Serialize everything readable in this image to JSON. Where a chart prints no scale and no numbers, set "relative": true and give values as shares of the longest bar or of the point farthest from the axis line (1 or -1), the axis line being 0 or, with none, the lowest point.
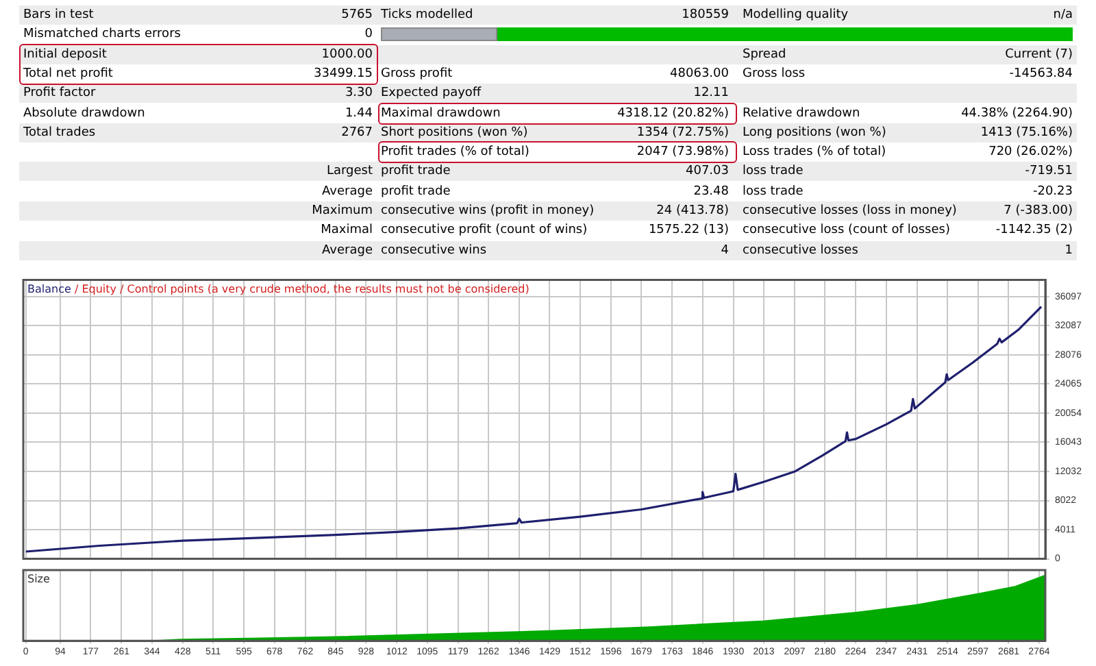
{
  "chart_data": [
    {
      "type": "other",
      "annotations": [
        "Bars in test",
        "5765",
        "Ticks modelled",
        "180559",
        "Modelling quality",
        "n/a",
        "Mismatched charts errors",
        "0",
        null,
        null,
        null,
        null,
        "Initial deposit",
        "1000.00",
        null,
        null,
        "Spread",
        "Current (7)",
        "Total net profit",
        "33499.15",
        "Gross profit",
        "48063.00",
        "Gross loss",
        "-14563.84",
        "Profit factor",
        "3.30",
        "Expected payoff",
        "12.11",
        null,
        null,
        "Absolute drawdown",
        "1.44",
        "Maximal drawdown",
        "4318.12 (20.82%)",
        "Relative drawdown",
        "44.38% (2264.90)",
        "Total trades",
        "2767",
        "Short positions (won %)",
        "1354 (72.75%)",
        "Long positions (won %)",
        "1413 (75.16%)",
        null,
        null,
        "Profit trades (% of total)",
        "2047 (73.98%)",
        "Loss trades (% of total)",
        "720 (26.02%)",
        null,
        "Largest",
        "profit trade",
        "407.03",
        "loss trade",
        "-719.51",
        null,
        "Average",
        "profit trade",
        "23.48",
        "loss trade",
        "-20.23",
        null,
        "Maximum",
        "consecutive wins (profit in money)",
        "24 (413.78)",
        "consecutive losses (loss in money)",
        "7 (-383.00)",
        null,
        "Maximal",
        "consecutive profit (count of wins)",
        "1575.22 (13)",
        "consecutive loss (count of losses)",
        "-1142.35 (2)",
        null,
        "Average",
        "consecutive wins",
        "4",
        "consecutive losses",
        "1"
      ]
    },
    {
      "type": "line",
      "legend": "top left",
      "grid": true,
      "tick_labels": "y",
      "annotations": [
        "/",
        "Equity",
        "/",
        "Control points (a very crude method, the results must not be considered)"
      ],
      "x": [
        0,
        200,
        428,
        640,
        845,
        1012,
        1179,
        1340,
        1346,
        1352,
        1512,
        1679,
        1843,
        1846,
        1850,
        1930,
        1936,
        1942,
        2013,
        2097,
        2172,
        2236,
        2240,
        2244,
        2264,
        2347,
        2415,
        2420,
        2425,
        2508,
        2512,
        2516,
        2583,
        2650,
        2656,
        2662,
        2707,
        2770
      ],
      "series": [
        {
          "name": "Balance",
          "color": "#1f1f6e",
          "values": [
            1000,
            1800,
            2500,
            2900,
            3300,
            3700,
            4200,
            4900,
            5500,
            5000,
            5800,
            6800,
            8300,
            9200,
            8400,
            9300,
            11700,
            9500,
            10600,
            12000,
            14200,
            16200,
            17400,
            16300,
            16500,
            18500,
            20400,
            22000,
            20700,
            24300,
            25400,
            24600,
            27000,
            29600,
            30300,
            29800,
            31500,
            34700
          ]
        }
      ],
      "xlim": [
        -7,
        2781
      ],
      "xticks": [
        0,
        94,
        177,
        261,
        344,
        428,
        511,
        595,
        678,
        762,
        845,
        928,
        1012,
        1095,
        1179,
        1262,
        1346,
        1429,
        1512,
        1596,
        1679,
        1763,
        1846,
        1930,
        2013,
        2097,
        2180,
        2264,
        2347,
        2431,
        2514,
        2597,
        2681,
        2764
      ],
      "ylim": [
        0,
        38400
      ],
      "yticks": [
        0,
        4011,
        8022,
        12032,
        16043,
        20054,
        24065,
        28076,
        32087,
        36097
      ]
    },
    {
      "type": "area",
      "title": "Size",
      "relative": true,
      "grid": "x",
      "color": "#00aa00",
      "x": [
        350,
        428,
        640,
        845,
        1100,
        1429,
        1700,
        2013,
        2264,
        2431,
        2600,
        2700,
        2781
      ],
      "values": [
        0,
        0.02,
        0.04,
        0.06,
        0.1,
        0.15,
        0.21,
        0.3,
        0.43,
        0.55,
        0.72,
        0.83,
        1
      ],
      "xlim": [
        -7,
        2781
      ],
      "xticks": [
        0,
        94,
        177,
        261,
        344,
        428,
        511,
        595,
        678,
        762,
        845,
        928,
        1012,
        1095,
        1179,
        1262,
        1346,
        1429,
        1512,
        1596,
        1679,
        1763,
        1846,
        1930,
        2013,
        2097,
        2180,
        2264,
        2347,
        2431,
        2514,
        2597,
        2681,
        2764
      ]
    }
  ]
}
